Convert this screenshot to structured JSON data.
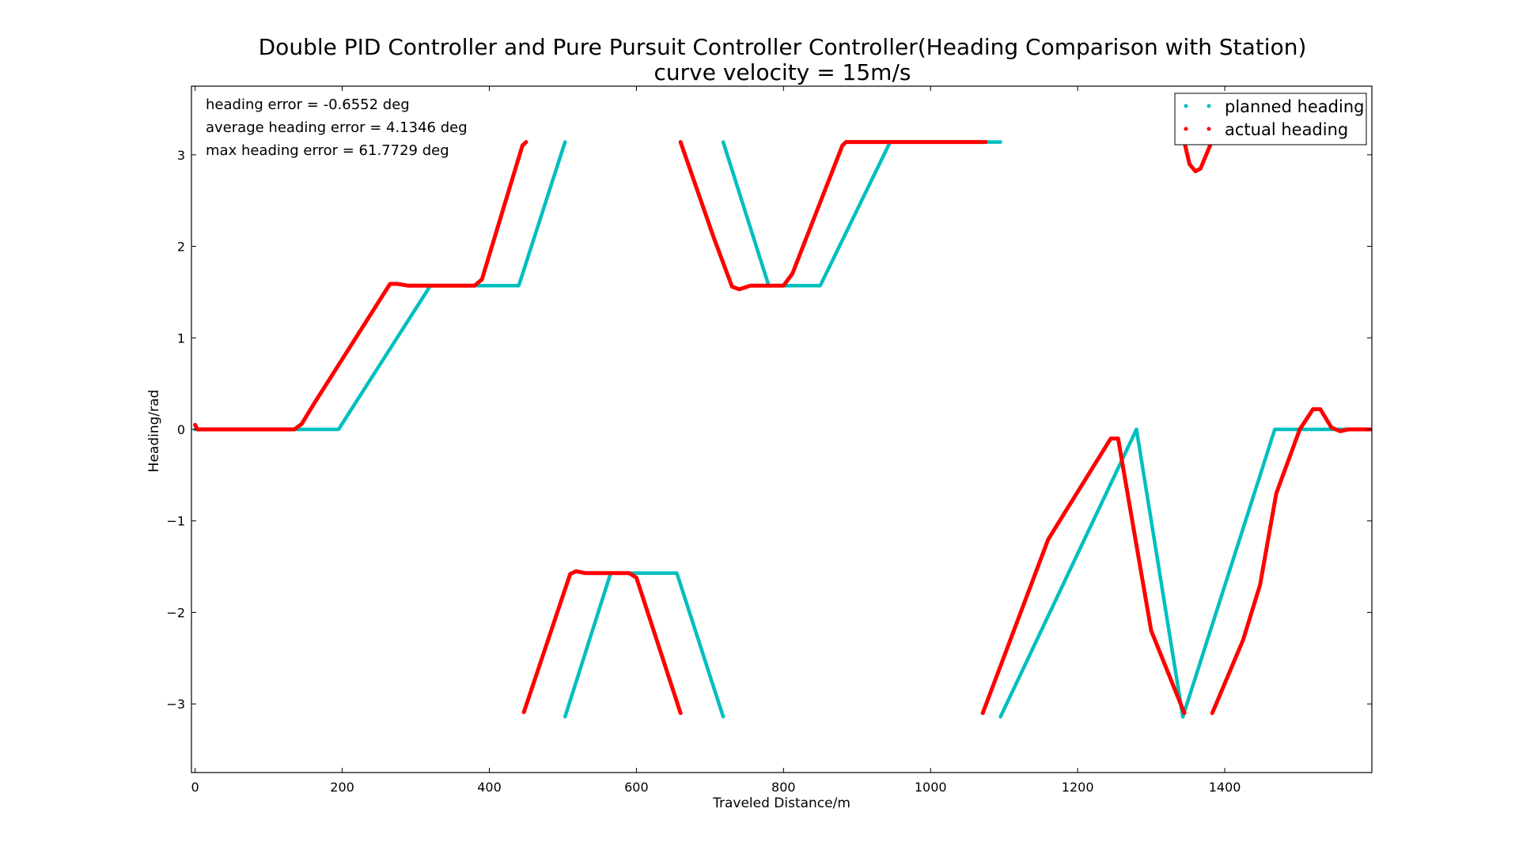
{
  "colors": {
    "planned": "#00bfbf",
    "actual": "#ff0000",
    "axis": "#000000",
    "background": "#ffffff"
  },
  "chart_data": {
    "type": "line",
    "title": "Double PID Controller and Pure Pursuit Controller Controller(Heading Comparison with Station)",
    "subtitle": "curve velocity = 15m/s",
    "xlabel": "Traveled Distance/m",
    "ylabel": "Heading/rad",
    "xlim": [
      -5,
      1600
    ],
    "ylim": [
      -3.75,
      3.75
    ],
    "xticks": [
      0,
      200,
      400,
      600,
      800,
      1000,
      1200,
      1400
    ],
    "xtick_labels": [
      "0",
      "200",
      "400",
      "600",
      "800",
      "1000",
      "1200",
      "1400"
    ],
    "yticks": [
      3,
      2,
      1,
      0,
      -1,
      -2,
      -3
    ],
    "ytick_labels": [
      "3",
      "2",
      "1",
      "0",
      "−1",
      "−2",
      "−3"
    ],
    "grid": false,
    "legend_position": "top-right",
    "annotations": [
      "heading error = -0.6552 deg",
      "average heading error = 4.1346 deg",
      "max heading error = 61.7729 deg"
    ],
    "series": [
      {
        "name": "planned heading",
        "color": "#00bfbf",
        "segments": [
          [
            [
              0,
              0
            ],
            [
              195,
              0
            ],
            [
              320,
              1.571
            ],
            [
              440,
              1.571
            ],
            [
              503,
              3.14
            ]
          ],
          [
            [
              503,
              -3.14
            ],
            [
              565,
              -1.571
            ],
            [
              655,
              -1.571
            ],
            [
              718,
              -3.14
            ]
          ],
          [
            [
              718,
              3.14
            ],
            [
              780,
              1.571
            ],
            [
              850,
              1.571
            ],
            [
              945,
              3.14
            ],
            [
              1095,
              3.14
            ]
          ],
          [
            [
              1095,
              -3.14
            ],
            [
              1280,
              0
            ],
            [
              1343,
              -3.14
            ]
          ],
          [
            [
              1343,
              -3.14
            ],
            [
              1468,
              0
            ],
            [
              1600,
              0
            ]
          ]
        ]
      },
      {
        "name": "actual heading",
        "color": "#ff0000",
        "segments": [
          [
            [
              0,
              0.05
            ],
            [
              3,
              0
            ],
            [
              135,
              0
            ],
            [
              145,
              0.06
            ],
            [
              160,
              0.26
            ],
            [
              265,
              1.59
            ],
            [
              275,
              1.59
            ],
            [
              290,
              1.57
            ],
            [
              380,
              1.57
            ],
            [
              390,
              1.64
            ],
            [
              445,
              3.1
            ],
            [
              450,
              3.14
            ]
          ],
          [
            [
              447,
              -3.09
            ],
            [
              510,
              -1.58
            ],
            [
              518,
              -1.55
            ],
            [
              530,
              -1.57
            ],
            [
              590,
              -1.57
            ],
            [
              600,
              -1.62
            ],
            [
              660,
              -3.1
            ]
          ],
          [
            [
              660,
              3.14
            ],
            [
              705,
              2.1
            ],
            [
              730,
              1.56
            ],
            [
              740,
              1.53
            ],
            [
              755,
              1.57
            ],
            [
              800,
              1.57
            ],
            [
              812,
              1.7
            ],
            [
              880,
              3.1
            ],
            [
              885,
              3.14
            ],
            [
              1075,
              3.14
            ]
          ],
          [
            [
              1071,
              -3.1
            ],
            [
              1160,
              -1.2
            ],
            [
              1245,
              -0.1
            ],
            [
              1255,
              -0.1
            ],
            [
              1270,
              -0.8
            ],
            [
              1300,
              -2.2
            ],
            [
              1345,
              -3.1
            ]
          ],
          [
            [
              1345,
              3.14
            ],
            [
              1352,
              2.9
            ],
            [
              1360,
              2.82
            ],
            [
              1367,
              2.85
            ],
            [
              1380,
              3.1
            ]
          ],
          [
            [
              1383,
              -3.1
            ],
            [
              1425,
              -2.3
            ],
            [
              1448,
              -1.7
            ],
            [
              1470,
              -0.7
            ],
            [
              1502,
              0
            ],
            [
              1520,
              0.22
            ],
            [
              1530,
              0.22
            ],
            [
              1545,
              0.02
            ],
            [
              1557,
              -0.02
            ],
            [
              1568,
              0
            ],
            [
              1600,
              0
            ]
          ]
        ]
      }
    ]
  }
}
